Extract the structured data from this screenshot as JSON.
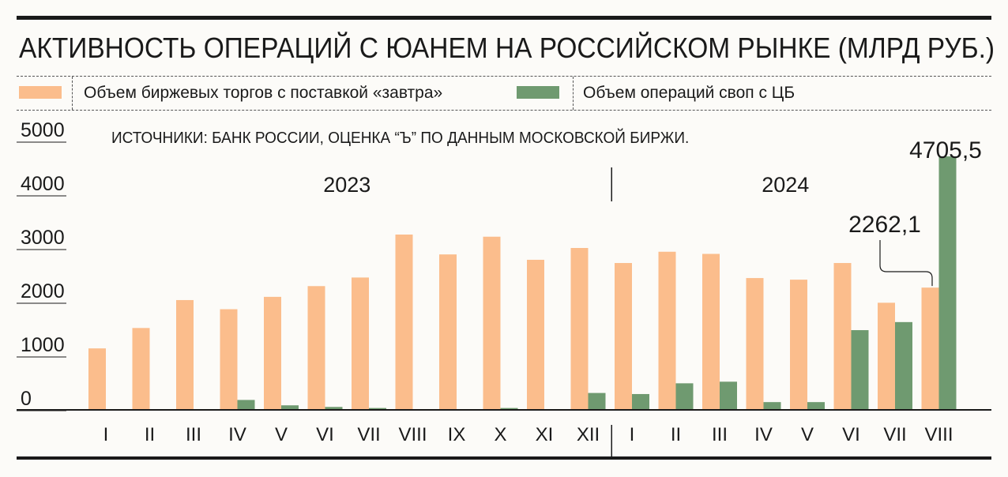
{
  "title": "АКТИВНОСТЬ ОПЕРАЦИЙ С ЮАНЕМ НА РОССИЙСКОМ РЫНКЕ (МЛРД РУБ.)",
  "colors": {
    "orange": "#fbbd8c",
    "green": "#6f9a70",
    "ink": "#1a1a1a"
  },
  "chart_data": {
    "type": "bar",
    "title": "АКТИВНОСТЬ ОПЕРАЦИЙ С ЮАНЕМ НА РОССИЙСКОМ РЫНКЕ (МЛРД РУБ.)",
    "source": "ИСТОЧНИКИ: БАНК РОССИИ, ОЦЕНКА “Ъ” ПО ДАННЫМ МОСКОВСКОЙ БИРЖИ.",
    "years": [
      {
        "label": "2023",
        "from": 0,
        "to": 11
      },
      {
        "label": "2024",
        "from": 12,
        "to": 19
      }
    ],
    "categories": [
      "I",
      "II",
      "III",
      "IV",
      "V",
      "VI",
      "VII",
      "VIII",
      "IX",
      "X",
      "XI",
      "XII",
      "I",
      "II",
      "III",
      "IV",
      "V",
      "VI",
      "VII",
      "VIII"
    ],
    "series": [
      {
        "name": "Объем биржевых торгов с поставкой «завтра»",
        "color": "#fbbd8c",
        "values": [
          1130,
          1510,
          2030,
          1860,
          2090,
          2290,
          2450,
          3250,
          2880,
          3210,
          2780,
          3000,
          2720,
          2930,
          2890,
          2440,
          2410,
          2720,
          1980,
          2262.1
        ]
      },
      {
        "name": "Объем операций своп с ЦБ",
        "color": "#6f9a70",
        "values": [
          0,
          0,
          0,
          170,
          70,
          40,
          20,
          0,
          0,
          20,
          0,
          300,
          280,
          480,
          510,
          130,
          130,
          1470,
          1620,
          4705.5
        ]
      }
    ],
    "yticks": [
      0,
      1000,
      2000,
      3000,
      4000,
      5000
    ],
    "ylim": [
      0,
      5000
    ],
    "annotations": [
      {
        "series": 0,
        "index": 19,
        "text": "2262,1"
      },
      {
        "series": 1,
        "index": 19,
        "text": "4705,5"
      }
    ],
    "legend": "top",
    "grid": false
  }
}
